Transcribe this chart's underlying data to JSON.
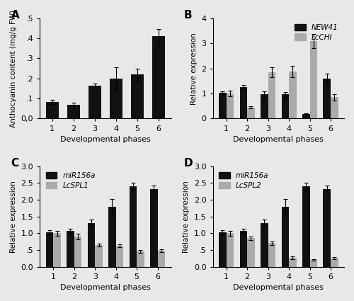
{
  "panel_A": {
    "label": "A",
    "values": [
      0.082,
      0.07,
      0.165,
      0.2,
      0.22,
      0.41
    ],
    "errors": [
      0.01,
      0.008,
      0.01,
      0.055,
      0.028,
      0.038
    ],
    "ylabel": "Anthocyanin content (mg/g FW)",
    "xlabel": "Developmental phases",
    "ylim": [
      0,
      0.5
    ],
    "yticks": [
      0.0,
      0.1,
      0.2,
      0.3,
      0.4,
      0.5
    ],
    "yticklabels": [
      "0,0",
      ".1",
      ".2",
      ".3",
      ".4",
      ".5"
    ],
    "bar_color": "#111111"
  },
  "panel_B": {
    "label": "B",
    "series1_label": "NEW41",
    "series2_label": "LcCHI",
    "series1_values": [
      1.02,
      1.25,
      0.97,
      0.97,
      0.18,
      1.6
    ],
    "series2_values": [
      1.0,
      0.45,
      1.85,
      1.88,
      3.08,
      0.85
    ],
    "series1_errors": [
      0.06,
      0.1,
      0.12,
      0.1,
      0.04,
      0.18
    ],
    "series2_errors": [
      0.12,
      0.05,
      0.2,
      0.22,
      0.28,
      0.12
    ],
    "ylabel": "Relative expression",
    "xlabel": "Developmental phases",
    "ylim": [
      0,
      4
    ],
    "yticks": [
      0,
      1,
      2,
      3,
      4
    ],
    "yticklabels": [
      "0",
      "1",
      "2",
      "3",
      "4"
    ],
    "bar_color1": "#111111",
    "bar_color2": "#aaaaaa"
  },
  "panel_C": {
    "label": "C",
    "series1_label": "miR156a",
    "series2_label": "LcSPL1",
    "series1_values": [
      1.02,
      1.07,
      1.3,
      1.8,
      2.4,
      2.32
    ],
    "series2_values": [
      1.0,
      0.9,
      0.65,
      0.63,
      0.46,
      0.48
    ],
    "series1_errors": [
      0.08,
      0.06,
      0.1,
      0.22,
      0.1,
      0.1
    ],
    "series2_errors": [
      0.08,
      0.08,
      0.04,
      0.04,
      0.04,
      0.04
    ],
    "ylabel": "Relative expression",
    "xlabel": "Developmental phases",
    "ylim": [
      0,
      3.0
    ],
    "yticks": [
      0.0,
      0.5,
      1.0,
      1.5,
      2.0,
      2.5,
      3.0
    ],
    "yticklabels": [
      "0.0",
      ".5",
      "1.0",
      "1.5",
      "2.0",
      "2.5",
      "3.0"
    ],
    "bar_color1": "#111111",
    "bar_color2": "#aaaaaa"
  },
  "panel_D": {
    "label": "D",
    "series1_label": "miR156a",
    "series2_label": "LcSPL2",
    "series1_values": [
      1.02,
      1.07,
      1.3,
      1.8,
      2.4,
      2.32
    ],
    "series2_values": [
      1.0,
      0.85,
      0.7,
      0.27,
      0.2,
      0.25
    ],
    "series1_errors": [
      0.08,
      0.06,
      0.1,
      0.22,
      0.1,
      0.1
    ],
    "series2_errors": [
      0.08,
      0.06,
      0.05,
      0.04,
      0.03,
      0.03
    ],
    "ylabel": "Relative expression",
    "xlabel": "Developmental phases",
    "ylim": [
      0,
      3.0
    ],
    "yticks": [
      0.0,
      0.5,
      1.0,
      1.5,
      2.0,
      2.5,
      3.0
    ],
    "yticklabels": [
      "0.0",
      ".5",
      "1.0",
      "1.5",
      "2.0",
      "2.5",
      "3.0"
    ],
    "bar_color1": "#111111",
    "bar_color2": "#aaaaaa"
  },
  "categories": [
    1,
    2,
    3,
    4,
    5,
    6
  ],
  "bg_color": "#e8e8e8",
  "figsize": [
    5.0,
    4.25
  ],
  "dpi": 100
}
